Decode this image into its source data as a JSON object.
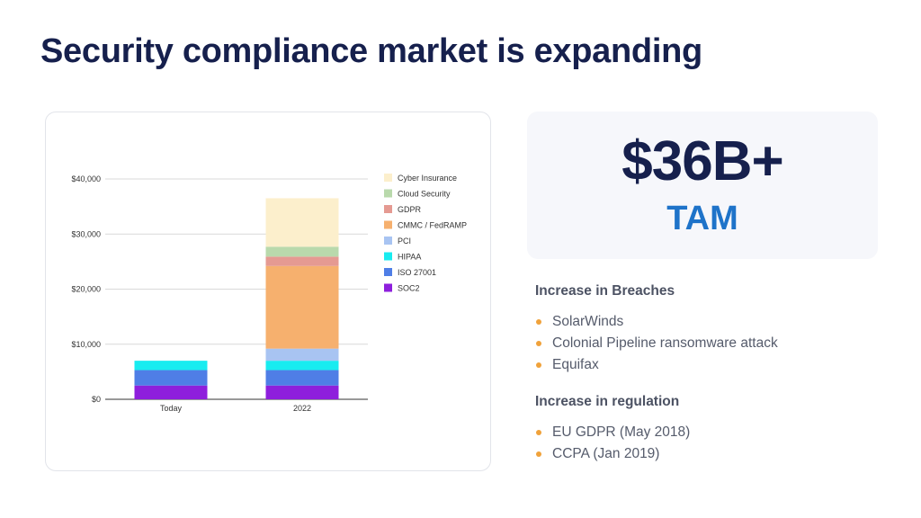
{
  "slide": {
    "title": "Security compliance market is expanding"
  },
  "tam": {
    "value": "$36B+",
    "label": "TAM"
  },
  "breaches": {
    "heading": "Increase in Breaches",
    "items": [
      "SolarWinds",
      "Colonial Pipeline ransomware attack",
      "Equifax"
    ]
  },
  "regulation": {
    "heading": "Increase in regulation",
    "items": [
      "EU GDPR (May 2018)",
      "CCPA (Jan 2019)"
    ]
  },
  "colors": {
    "title": "#16204d",
    "tam_label": "#1e73c9",
    "bullet": "#f0a23b"
  },
  "chart_data": {
    "type": "bar",
    "stacked": true,
    "categories": [
      "Today",
      "2022"
    ],
    "series": [
      {
        "name": "SOC2",
        "color": "#8e1fdc",
        "values": [
          2500,
          2500
        ]
      },
      {
        "name": "ISO 27001",
        "color": "#4f7ee6",
        "values": [
          2800,
          2800
        ]
      },
      {
        "name": "HIPAA",
        "color": "#18ecf0",
        "values": [
          1700,
          1700
        ]
      },
      {
        "name": "PCI",
        "color": "#a8c4f2",
        "values": [
          0,
          2200
        ]
      },
      {
        "name": "CMMC / FedRAMP",
        "color": "#f6b06e",
        "values": [
          0,
          15000
        ]
      },
      {
        "name": "GDPR",
        "color": "#e59a92",
        "values": [
          0,
          1700
        ]
      },
      {
        "name": "Cloud Security",
        "color": "#b9d9ac",
        "values": [
          0,
          1800
        ]
      },
      {
        "name": "Cyber Insurance",
        "color": "#fcefcc",
        "values": [
          0,
          8800
        ]
      }
    ],
    "ylim": [
      0,
      40000
    ],
    "yticks": [
      0,
      10000,
      20000,
      30000,
      40000
    ],
    "ytick_labels": [
      "$0",
      "$10,000",
      "$20,000",
      "$30,000",
      "$40,000"
    ],
    "legend_order": [
      "Cyber Insurance",
      "Cloud Security",
      "GDPR",
      "CMMC / FedRAMP",
      "PCI",
      "HIPAA",
      "ISO 27001",
      "SOC2"
    ],
    "legend_position": "right",
    "grid": true
  }
}
